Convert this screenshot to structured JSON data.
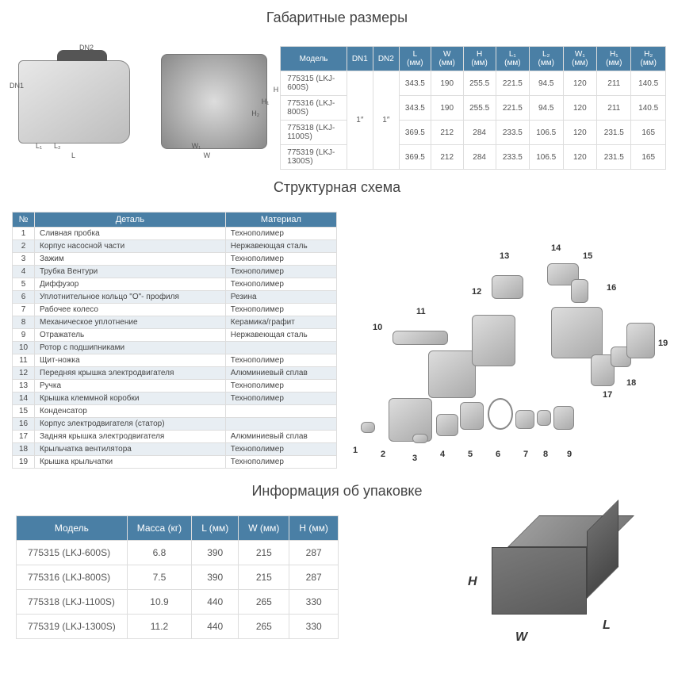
{
  "sections": {
    "dimensions_title": "Габаритные размеры",
    "structure_title": "Структурная схема",
    "packaging_title": "Информация об упаковке"
  },
  "dim_labels": {
    "dn1": "DN1",
    "dn2": "DN2",
    "l": "L",
    "l1": "L₁",
    "l2": "L₂",
    "h": "H",
    "h1": "H₁",
    "h2": "H₂",
    "w": "W",
    "w1": "W₁"
  },
  "dim_table": {
    "headers": [
      "Модель",
      "DN1",
      "DN2",
      "L (мм)",
      "W (мм)",
      "H (мм)",
      "L₁ (мм)",
      "L₂ (мм)",
      "W₁ (мм)",
      "H₁ (мм)",
      "H₂ (мм)"
    ],
    "dn1": "1″",
    "dn2": "1″",
    "rows": [
      {
        "model": "775315 (LKJ-600S)",
        "l": "343.5",
        "w": "190",
        "h": "255.5",
        "l1": "221.5",
        "l2": "94.5",
        "w1": "120",
        "h1": "211",
        "h2": "140.5"
      },
      {
        "model": "775316 (LKJ-800S)",
        "l": "343.5",
        "w": "190",
        "h": "255.5",
        "l1": "221.5",
        "l2": "94.5",
        "w1": "120",
        "h1": "211",
        "h2": "140.5"
      },
      {
        "model": "775318 (LKJ-1100S)",
        "l": "369.5",
        "w": "212",
        "h": "284",
        "l1": "233.5",
        "l2": "106.5",
        "w1": "120",
        "h1": "231.5",
        "h2": "165"
      },
      {
        "model": "775319 (LKJ-1300S)",
        "l": "369.5",
        "w": "212",
        "h": "284",
        "l1": "233.5",
        "l2": "106.5",
        "w1": "120",
        "h1": "231.5",
        "h2": "165"
      }
    ]
  },
  "parts_table": {
    "headers": [
      "№",
      "Деталь",
      "Материал"
    ],
    "rows": [
      {
        "n": "1",
        "part": "Сливная пробка",
        "mat": "Технополимер"
      },
      {
        "n": "2",
        "part": "Корпус насосной части",
        "mat": "Нержавеющая сталь"
      },
      {
        "n": "3",
        "part": "Зажим",
        "mat": "Технополимер"
      },
      {
        "n": "4",
        "part": "Трубка Вентури",
        "mat": "Технополимер"
      },
      {
        "n": "5",
        "part": "Диффузор",
        "mat": "Технополимер"
      },
      {
        "n": "6",
        "part": "Уплотнительное кольцо \"О\"- профиля",
        "mat": "Резина"
      },
      {
        "n": "7",
        "part": "Рабочее колесо",
        "mat": "Технополимер"
      },
      {
        "n": "8",
        "part": "Механическое уплотнение",
        "mat": "Керамика/графит"
      },
      {
        "n": "9",
        "part": "Отражатель",
        "mat": "Нержавеющая сталь"
      },
      {
        "n": "10",
        "part": "Ротор с подшипниками",
        "mat": ""
      },
      {
        "n": "11",
        "part": "Щит-ножка",
        "mat": "Технополимер"
      },
      {
        "n": "12",
        "part": "Передняя крышка электродвигателя",
        "mat": "Алюминиевый сплав"
      },
      {
        "n": "13",
        "part": "Ручка",
        "mat": "Технополимер"
      },
      {
        "n": "14",
        "part": "Крышка клеммной коробки",
        "mat": "Технополимер"
      },
      {
        "n": "15",
        "part": "Конденсатор",
        "mat": ""
      },
      {
        "n": "16",
        "part": "Корпус электродвигателя (статор)",
        "mat": ""
      },
      {
        "n": "17",
        "part": "Задняя крышка электродвигателя",
        "mat": "Алюминиевый сплав"
      },
      {
        "n": "18",
        "part": "Крыльчатка вентилятора",
        "mat": "Технополимер"
      },
      {
        "n": "19",
        "part": "Крышка крыльчатки",
        "mat": "Технополимер"
      }
    ]
  },
  "exploded_labels": [
    "1",
    "2",
    "3",
    "4",
    "5",
    "6",
    "7",
    "8",
    "9",
    "10",
    "11",
    "12",
    "13",
    "14",
    "15",
    "16",
    "17",
    "18",
    "19"
  ],
  "pack_table": {
    "headers": [
      "Модель",
      "Масса (кг)",
      "L (мм)",
      "W (мм)",
      "H (мм)"
    ],
    "rows": [
      {
        "model": "775315 (LKJ-600S)",
        "mass": "6.8",
        "l": "390",
        "w": "215",
        "h": "287"
      },
      {
        "model": "775316 (LKJ-800S)",
        "mass": "7.5",
        "l": "390",
        "w": "215",
        "h": "287"
      },
      {
        "model": "775318 (LKJ-1100S)",
        "mass": "10.9",
        "l": "440",
        "w": "265",
        "h": "330"
      },
      {
        "model": "775319 (LKJ-1300S)",
        "mass": "11.2",
        "l": "440",
        "w": "265",
        "h": "330"
      }
    ]
  },
  "box_labels": {
    "h": "H",
    "w": "W",
    "l": "L"
  },
  "colors": {
    "header_bg": "#4a7fa5",
    "row_alt_bg": "#e8eef3",
    "border": "#dddddd",
    "text": "#555555"
  }
}
